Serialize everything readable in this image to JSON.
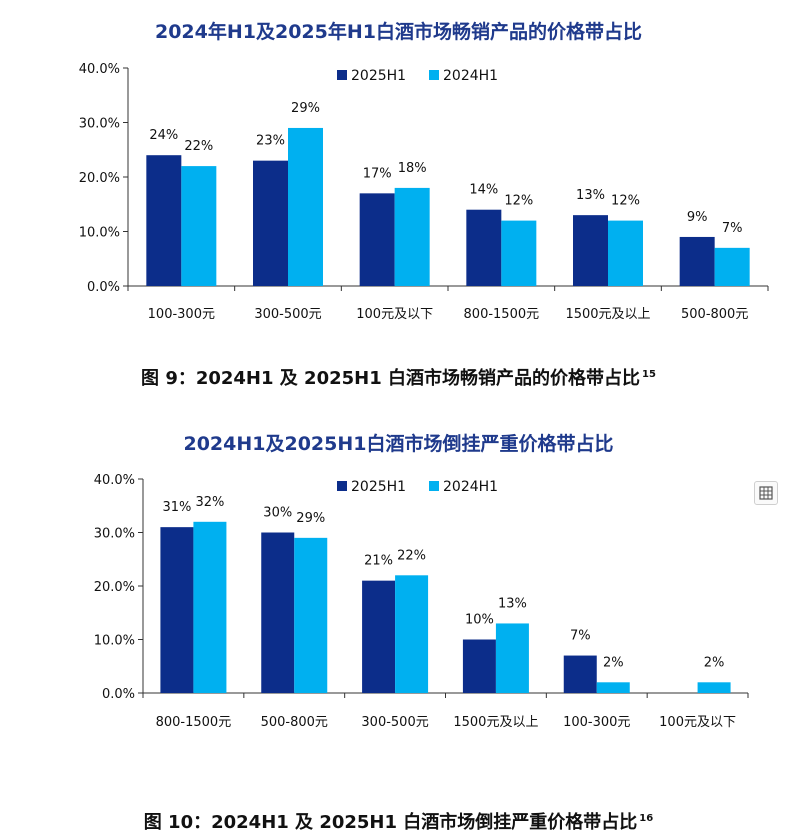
{
  "chart_data": [
    {
      "type": "bar",
      "title": "2024年H1及2025年H1白酒市场畅销产品的价格带占比",
      "categories": [
        "100-300元",
        "300-500元",
        "100元及以下",
        "800-1500元",
        "1500元及以上",
        "500-800元"
      ],
      "series": [
        {
          "name": "2025H1",
          "values": [
            24,
            23,
            17,
            14,
            13,
            9
          ],
          "labels": [
            "24%",
            "23%",
            "17%",
            "14%",
            "13%",
            "9%"
          ]
        },
        {
          "name": "2024H1",
          "values": [
            22,
            29,
            18,
            12,
            12,
            7
          ],
          "labels": [
            "22%",
            "29%",
            "18%",
            "12%",
            "12%",
            "7%"
          ]
        }
      ],
      "yticks": [
        "0.0%",
        "10.0%",
        "20.0%",
        "30.0%",
        "40.0%"
      ],
      "ylim": [
        0,
        40
      ],
      "legend": "top-center",
      "grid": false,
      "colors": [
        "#0c2d8a",
        "#00b0f0"
      ],
      "caption": "图 9：2024H1 及 2025H1 白酒市场畅销产品的价格带占比",
      "caption_ref": "15"
    },
    {
      "type": "bar",
      "title": "2024H1及2025H1白酒市场倒挂严重价格带占比",
      "categories": [
        "800-1500元",
        "500-800元",
        "300-500元",
        "1500元及以上",
        "100-300元",
        "100元及以下"
      ],
      "series": [
        {
          "name": "2025H1",
          "values": [
            31,
            30,
            21,
            10,
            7,
            0
          ],
          "labels": [
            "31%",
            "30%",
            "21%",
            "10%",
            "7%",
            ""
          ]
        },
        {
          "name": "2024H1",
          "values": [
            32,
            29,
            22,
            13,
            2,
            2
          ],
          "labels": [
            "32%",
            "29%",
            "22%",
            "13%",
            "2%",
            "2%"
          ]
        }
      ],
      "yticks": [
        "0.0%",
        "10.0%",
        "20.0%",
        "30.0%",
        "40.0%"
      ],
      "ylim": [
        0,
        40
      ],
      "legend": "top-center",
      "grid": false,
      "colors": [
        "#0c2d8a",
        "#00b0f0"
      ],
      "caption": "图 10：2024H1 及 2025H1 白酒市场倒挂严重价格带占比",
      "caption_ref": "16"
    }
  ],
  "side_icon": "table-icon"
}
